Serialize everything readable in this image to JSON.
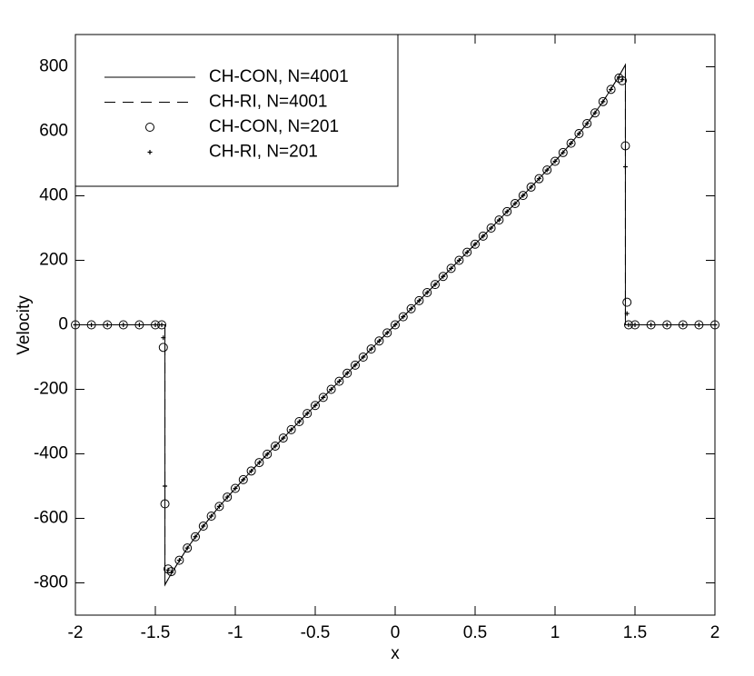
{
  "chart_data": {
    "type": "line",
    "x_label": "x",
    "y_label": "Velocity",
    "xlim": [
      -2,
      2
    ],
    "xticks": [
      -2,
      -1.5,
      -1,
      -0.5,
      0,
      0.5,
      1,
      1.5,
      2
    ],
    "ylim": [
      -900,
      900
    ],
    "yticks": [
      -800,
      -600,
      -400,
      -200,
      0,
      200,
      400,
      600,
      800
    ],
    "legend": "upper left",
    "series": [
      {
        "name": "CH-CON, N=4001",
        "color": "#000000",
        "style": "solid",
        "x": [
          -2,
          -1.44,
          -1.44,
          -1.4,
          -1.3,
          -1.2,
          -1.1,
          -1,
          -0.9,
          -0.8,
          -0.7,
          -0.6,
          -0.5,
          -0.4,
          -0.3,
          -0.2,
          -0.1,
          0,
          0.1,
          0.2,
          0.3,
          0.4,
          0.5,
          0.6,
          0.7,
          0.8,
          0.9,
          1,
          1.1,
          1.2,
          1.3,
          1.4,
          1.44,
          1.44,
          2
        ],
        "values": [
          0,
          0,
          -806,
          -771,
          -692,
          -624,
          -563,
          -507,
          -453,
          -401,
          -351,
          -300,
          -250,
          -200,
          -150,
          -100,
          -50,
          0,
          50,
          100,
          150,
          200,
          250,
          300,
          351,
          401,
          453,
          507,
          563,
          624,
          692,
          771,
          806,
          0,
          0
        ]
      },
      {
        "name": "CH-RI, N=4001",
        "color": "#000000",
        "style": "dashed",
        "x": [
          -2,
          -1.44,
          -1.44,
          -1.4,
          -1.3,
          -1.2,
          -1.1,
          -1,
          -0.9,
          -0.8,
          -0.7,
          -0.6,
          -0.5,
          -0.4,
          -0.3,
          -0.2,
          -0.1,
          0,
          0.1,
          0.2,
          0.3,
          0.4,
          0.5,
          0.6,
          0.7,
          0.8,
          0.9,
          1,
          1.1,
          1.2,
          1.3,
          1.4,
          1.44,
          1.44,
          2
        ],
        "values": [
          0,
          0,
          -806,
          -771,
          -692,
          -624,
          -563,
          -507,
          -453,
          -401,
          -351,
          -300,
          -250,
          -200,
          -150,
          -100,
          -50,
          0,
          50,
          100,
          150,
          200,
          250,
          300,
          351,
          401,
          453,
          507,
          563,
          624,
          692,
          771,
          806,
          0,
          0
        ]
      },
      {
        "name": "CH-CON, N=201",
        "color": "#000000",
        "style": "circle",
        "x": [
          -2,
          -1.9,
          -1.8,
          -1.7,
          -1.6,
          -1.5,
          -1.46,
          -1.45,
          -1.44,
          -1.42,
          -1.4,
          -1.35,
          -1.3,
          -1.25,
          -1.2,
          -1.15,
          -1.1,
          -1.05,
          -1,
          -0.95,
          -0.9,
          -0.85,
          -0.8,
          -0.75,
          -0.7,
          -0.65,
          -0.6,
          -0.55,
          -0.5,
          -0.45,
          -0.4,
          -0.35,
          -0.3,
          -0.25,
          -0.2,
          -0.15,
          -0.1,
          -0.05,
          0,
          0.05,
          0.1,
          0.15,
          0.2,
          0.25,
          0.3,
          0.35,
          0.4,
          0.45,
          0.5,
          0.55,
          0.6,
          0.65,
          0.7,
          0.75,
          0.8,
          0.85,
          0.9,
          0.95,
          1,
          1.05,
          1.1,
          1.15,
          1.2,
          1.25,
          1.3,
          1.35,
          1.4,
          1.42,
          1.44,
          1.45,
          1.46,
          1.5,
          1.6,
          1.7,
          1.8,
          1.9,
          2
        ],
        "values": [
          0,
          0,
          0,
          0,
          0,
          0,
          0,
          -70,
          -555,
          -757,
          -765,
          -730,
          -692,
          -657,
          -624,
          -593,
          -563,
          -534,
          -507,
          -480,
          -453,
          -427,
          -401,
          -376,
          -351,
          -325,
          -300,
          -275,
          -250,
          -225,
          -200,
          -175,
          -150,
          -125,
          -100,
          -75,
          -50,
          -25,
          0,
          25,
          50,
          75,
          100,
          125,
          150,
          175,
          200,
          225,
          250,
          275,
          300,
          325,
          351,
          376,
          401,
          427,
          453,
          480,
          507,
          534,
          563,
          593,
          624,
          657,
          692,
          730,
          765,
          757,
          555,
          70,
          0,
          0,
          0,
          0,
          0,
          0,
          0
        ]
      },
      {
        "name": "CH-RI, N=201",
        "color": "#000000",
        "style": "plus",
        "x": [
          -2,
          -1.9,
          -1.8,
          -1.7,
          -1.6,
          -1.5,
          -1.46,
          -1.45,
          -1.44,
          -1.42,
          -1.4,
          -1.35,
          -1.3,
          -1.25,
          -1.2,
          -1.15,
          -1.1,
          -1.05,
          -1,
          -0.95,
          -0.9,
          -0.85,
          -0.8,
          -0.75,
          -0.7,
          -0.65,
          -0.6,
          -0.55,
          -0.5,
          -0.45,
          -0.4,
          -0.35,
          -0.3,
          -0.25,
          -0.2,
          -0.15,
          -0.1,
          -0.05,
          0,
          0.05,
          0.1,
          0.15,
          0.2,
          0.25,
          0.3,
          0.35,
          0.4,
          0.45,
          0.5,
          0.55,
          0.6,
          0.65,
          0.7,
          0.75,
          0.8,
          0.85,
          0.9,
          0.95,
          1,
          1.05,
          1.1,
          1.15,
          1.2,
          1.25,
          1.3,
          1.35,
          1.4,
          1.42,
          1.44,
          1.45,
          1.46,
          1.5,
          1.6,
          1.7,
          1.8,
          1.9,
          2
        ],
        "values": [
          0,
          0,
          0,
          0,
          0,
          0,
          0,
          -40,
          -500,
          -760,
          -768,
          -730,
          -692,
          -657,
          -624,
          -593,
          -563,
          -534,
          -507,
          -480,
          -453,
          -427,
          -401,
          -376,
          -351,
          -325,
          -300,
          -275,
          -250,
          -225,
          -200,
          -175,
          -150,
          -125,
          -100,
          -75,
          -50,
          -25,
          0,
          25,
          50,
          75,
          100,
          125,
          150,
          175,
          200,
          225,
          250,
          275,
          300,
          325,
          351,
          376,
          401,
          427,
          453,
          480,
          507,
          534,
          563,
          593,
          624,
          657,
          692,
          730,
          768,
          760,
          490,
          35,
          0,
          0,
          0,
          0,
          0,
          0,
          0
        ]
      }
    ]
  }
}
